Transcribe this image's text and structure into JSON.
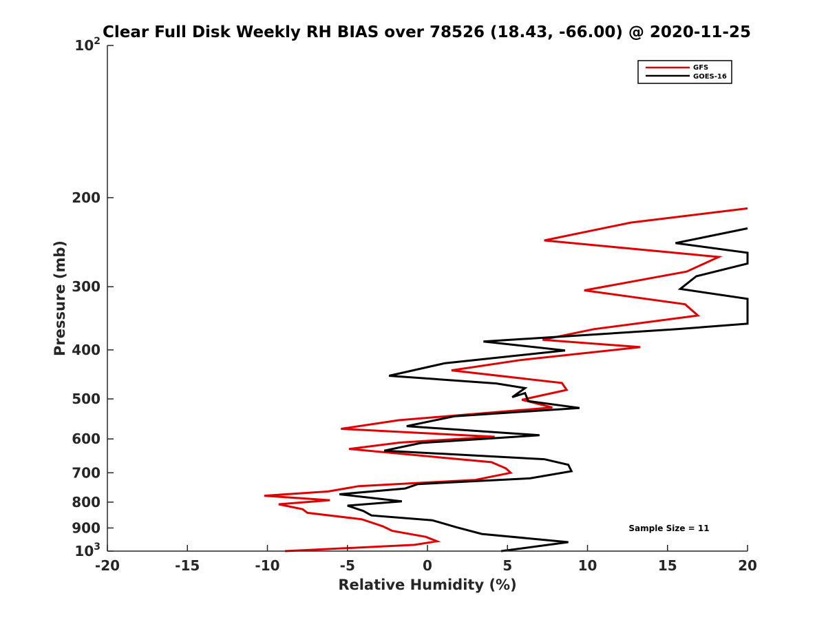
{
  "chart_data": {
    "type": "line",
    "title": "Clear Full Disk Weekly RH BIAS over 78526 (18.43, -66.00) @ 2020-11-25",
    "xlabel": "Relative Humidity (%)",
    "ylabel": "Pressure (mb)",
    "xlim": [
      -20,
      20
    ],
    "ylim": [
      100,
      1000
    ],
    "y_scale": "log",
    "y_reversed": true,
    "x_ticks": [
      "-20",
      "-15",
      "-10",
      "-5",
      "0",
      "5",
      "10",
      "15",
      "20"
    ],
    "y_ticks": [
      {
        "value": 100,
        "base": "10",
        "exp": "2"
      },
      {
        "value": 200,
        "label": "200"
      },
      {
        "value": 300,
        "label": "300"
      },
      {
        "value": 400,
        "label": "400"
      },
      {
        "value": 500,
        "label": "500"
      },
      {
        "value": 600,
        "label": "600"
      },
      {
        "value": 700,
        "label": "700"
      },
      {
        "value": 800,
        "label": "800"
      },
      {
        "value": 900,
        "label": "900"
      },
      {
        "value": 1000,
        "base": "10",
        "exp": "3"
      }
    ],
    "legend_position": "top-right",
    "grid": false,
    "annotation": "Sample Size = 11",
    "series": [
      {
        "name": "GFS",
        "color": "#e00000",
        "points": [
          [
            20,
            210
          ],
          [
            12.7,
            224
          ],
          [
            7.3,
            243
          ],
          [
            18.2,
            262
          ],
          [
            16.2,
            280
          ],
          [
            9.8,
            305
          ],
          [
            16.1,
            325
          ],
          [
            16.9,
            342
          ],
          [
            10.4,
            364
          ],
          [
            7.2,
            382
          ],
          [
            13.3,
            395
          ],
          [
            5.8,
            419
          ],
          [
            1.5,
            439
          ],
          [
            8.4,
            465
          ],
          [
            8.7,
            480
          ],
          [
            5.9,
            502
          ],
          [
            7.8,
            520
          ],
          [
            -1.8,
            551
          ],
          [
            -5.4,
            573
          ],
          [
            4.2,
            594
          ],
          [
            -1.7,
            610
          ],
          [
            -4.9,
            628
          ],
          [
            4,
            667
          ],
          [
            4.9,
            686
          ],
          [
            5.2,
            700
          ],
          [
            3.0,
            723
          ],
          [
            -4.3,
            744
          ],
          [
            -6.2,
            762
          ],
          [
            -10.2,
            777
          ],
          [
            -6.1,
            793
          ],
          [
            -9.3,
            808
          ],
          [
            -7.8,
            826
          ],
          [
            -7.5,
            840
          ],
          [
            -4.1,
            865
          ],
          [
            -2.8,
            893
          ],
          [
            -2.2,
            912
          ],
          [
            -0.1,
            937
          ],
          [
            0.6,
            956
          ],
          [
            -0.8,
            972
          ],
          [
            -8.9,
            1000
          ]
        ]
      },
      {
        "name": "GOES-16",
        "color": "#000000",
        "points": [
          [
            20,
            230
          ],
          [
            15.5,
            246
          ],
          [
            20,
            257
          ],
          [
            20,
            270
          ],
          [
            16.8,
            286
          ],
          [
            15.8,
            303
          ],
          [
            20,
            317
          ],
          [
            20,
            355
          ],
          [
            15.6,
            364
          ],
          [
            8.1,
            377
          ],
          [
            3.5,
            385
          ],
          [
            8.6,
            401
          ],
          [
            1.1,
            425
          ],
          [
            -2.4,
            450
          ],
          [
            4.3,
            466
          ],
          [
            6.1,
            476
          ],
          [
            5.3,
            496
          ],
          [
            6.1,
            487
          ],
          [
            6.3,
            505
          ],
          [
            9.5,
            521
          ],
          [
            1.7,
            541
          ],
          [
            -1.3,
            566
          ],
          [
            7.0,
            590
          ],
          [
            -0.4,
            611
          ],
          [
            -2.7,
            633
          ],
          [
            7.3,
            658
          ],
          [
            8.8,
            675
          ],
          [
            9.0,
            695
          ],
          [
            6.4,
            718
          ],
          [
            -0.6,
            737
          ],
          [
            -1.4,
            752
          ],
          [
            -5.5,
            772
          ],
          [
            -1.6,
            797
          ],
          [
            -5.0,
            813
          ],
          [
            -4.0,
            833
          ],
          [
            -3.5,
            850
          ],
          [
            0.3,
            869
          ],
          [
            1.8,
            897
          ],
          [
            3.4,
            925
          ],
          [
            8.8,
            960
          ],
          [
            4.6,
            1000
          ]
        ]
      }
    ]
  }
}
